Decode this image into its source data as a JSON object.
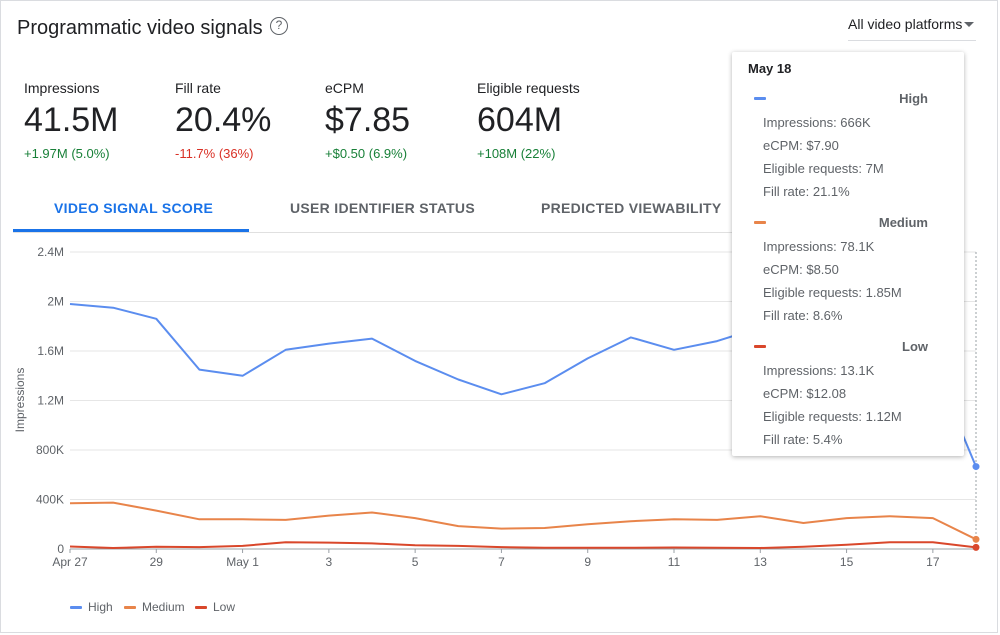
{
  "header": {
    "title": "Programmatic video signals",
    "platform_filter": "All video platforms"
  },
  "metrics": [
    {
      "label": "Impressions",
      "value": "41.5M",
      "delta": "+1.97M (5.0%)",
      "trend": "up"
    },
    {
      "label": "Fill rate",
      "value": "20.4%",
      "delta": "-11.7% (36%)",
      "trend": "down"
    },
    {
      "label": "eCPM",
      "value": "$7.85",
      "delta": "+$0.50 (6.9%)",
      "trend": "up"
    },
    {
      "label": "Eligible requests",
      "value": "604M",
      "delta": "+108M (22%)",
      "trend": "up"
    }
  ],
  "tabs": [
    {
      "label": "VIDEO SIGNAL SCORE",
      "active": true
    },
    {
      "label": "USER IDENTIFIER STATUS",
      "active": false
    },
    {
      "label": "PREDICTED VIEWABILITY",
      "active": false
    }
  ],
  "colors": {
    "high": "#5b8def",
    "medium": "#e8844a",
    "low": "#d9472b",
    "accent": "#1a73e8"
  },
  "chart_data": {
    "type": "line",
    "ylabel": "Impressions",
    "ylim": [
      0,
      2400000
    ],
    "y_ticks": [
      "0",
      "400K",
      "800K",
      "1.2M",
      "1.6M",
      "2M",
      "2.4M"
    ],
    "x_ticks": [
      "Apr 27",
      "29",
      "May 1",
      "3",
      "5",
      "7",
      "9",
      "11",
      "13",
      "15",
      "17"
    ],
    "x": [
      "Apr 27",
      "Apr 28",
      "Apr 29",
      "Apr 30",
      "May 1",
      "May 2",
      "May 3",
      "May 4",
      "May 5",
      "May 6",
      "May 7",
      "May 8",
      "May 9",
      "May 10",
      "May 11",
      "May 12",
      "May 13",
      "May 14",
      "May 15",
      "May 16",
      "May 17",
      "May 18"
    ],
    "grid": true,
    "legend_position": "bottom-left",
    "series": [
      {
        "name": "High",
        "values": [
          1980000,
          1950000,
          1860000,
          1450000,
          1400000,
          1610000,
          1660000,
          1700000,
          1520000,
          1370000,
          1250000,
          1340000,
          1540000,
          1710000,
          1610000,
          1680000,
          1790000,
          1850000,
          1800000,
          1650000,
          1500000,
          666000
        ]
      },
      {
        "name": "Medium",
        "values": [
          370000,
          375000,
          310000,
          240000,
          240000,
          235000,
          270000,
          295000,
          250000,
          185000,
          165000,
          170000,
          200000,
          225000,
          240000,
          235000,
          265000,
          210000,
          250000,
          265000,
          250000,
          78100
        ]
      },
      {
        "name": "Low",
        "values": [
          20000,
          8000,
          18000,
          15000,
          25000,
          55000,
          52000,
          45000,
          30000,
          25000,
          15000,
          10000,
          10000,
          10000,
          12000,
          10000,
          8000,
          18000,
          35000,
          55000,
          55000,
          13100
        ]
      }
    ],
    "tooltip": {
      "date": "May 18",
      "entries": [
        {
          "name": "High",
          "lines": [
            "Impressions: 666K",
            "eCPM: $7.90",
            "Eligible requests: 7M",
            "Fill rate: 21.1%"
          ]
        },
        {
          "name": "Medium",
          "lines": [
            "Impressions: 78.1K",
            "eCPM: $8.50",
            "Eligible requests: 1.85M",
            "Fill rate: 8.6%"
          ]
        },
        {
          "name": "Low",
          "lines": [
            "Impressions: 13.1K",
            "eCPM: $12.08",
            "Eligible requests: 1.12M",
            "Fill rate: 5.4%"
          ]
        }
      ]
    }
  }
}
